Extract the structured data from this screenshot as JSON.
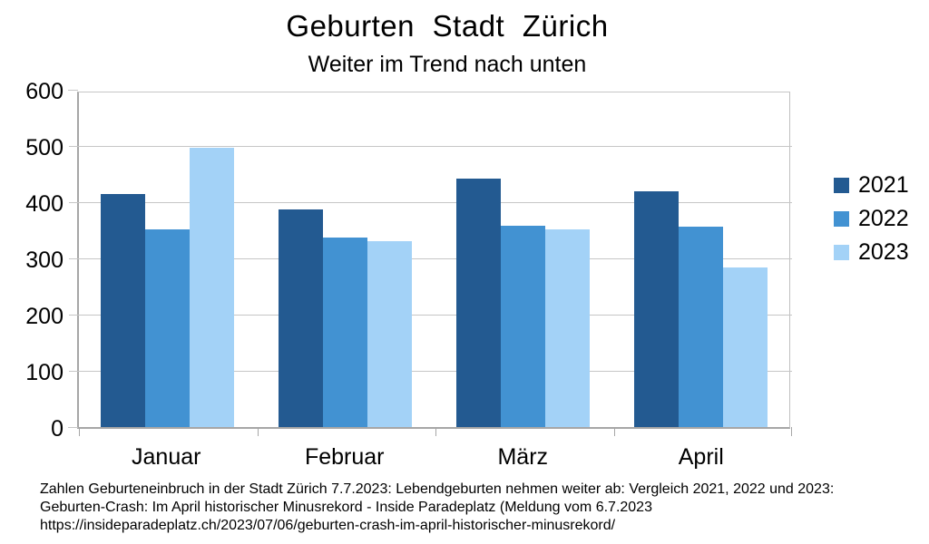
{
  "title": "Geburten Stadt Zürich",
  "subtitle": "Weiter im Trend nach unten",
  "chart_data": {
    "type": "bar",
    "categories": [
      "Januar",
      "Februar",
      "März",
      "April"
    ],
    "series": [
      {
        "name": "2021",
        "color": "#235a91",
        "values": [
          414,
          387,
          442,
          419
        ]
      },
      {
        "name": "2022",
        "color": "#4292d2",
        "values": [
          351,
          337,
          358,
          357
        ]
      },
      {
        "name": "2023",
        "color": "#a3d2f7",
        "values": [
          496,
          331,
          352,
          284
        ]
      }
    ],
    "xlabel": "",
    "ylabel": "",
    "ylim": [
      0,
      600
    ],
    "yticks": [
      0,
      100,
      200,
      300,
      400,
      500,
      600
    ],
    "grid": true,
    "legend_position": "right",
    "legend_entries": [
      "2021",
      "2022",
      "2023"
    ]
  },
  "footnote": {
    "line1": "Zahlen Geburteneinbruch in der Stadt Zürich 7.7.2023: Lebendgeburten nehmen weiter ab: Vergleich 2021, 2022 und 2023:",
    "line2": "Geburten-Crash: Im April historischer Minusrekord - Inside Paradeplatz (Meldung vom 6.7.2023",
    "line3": "https://insideparadeplatz.ch/2023/07/06/geburten-crash-im-april-historischer-minusrekord/"
  },
  "colors": {
    "background": "#ffffff",
    "gridline": "#c6c6c6",
    "axis": "#a6a6a6",
    "text": "#000000"
  }
}
